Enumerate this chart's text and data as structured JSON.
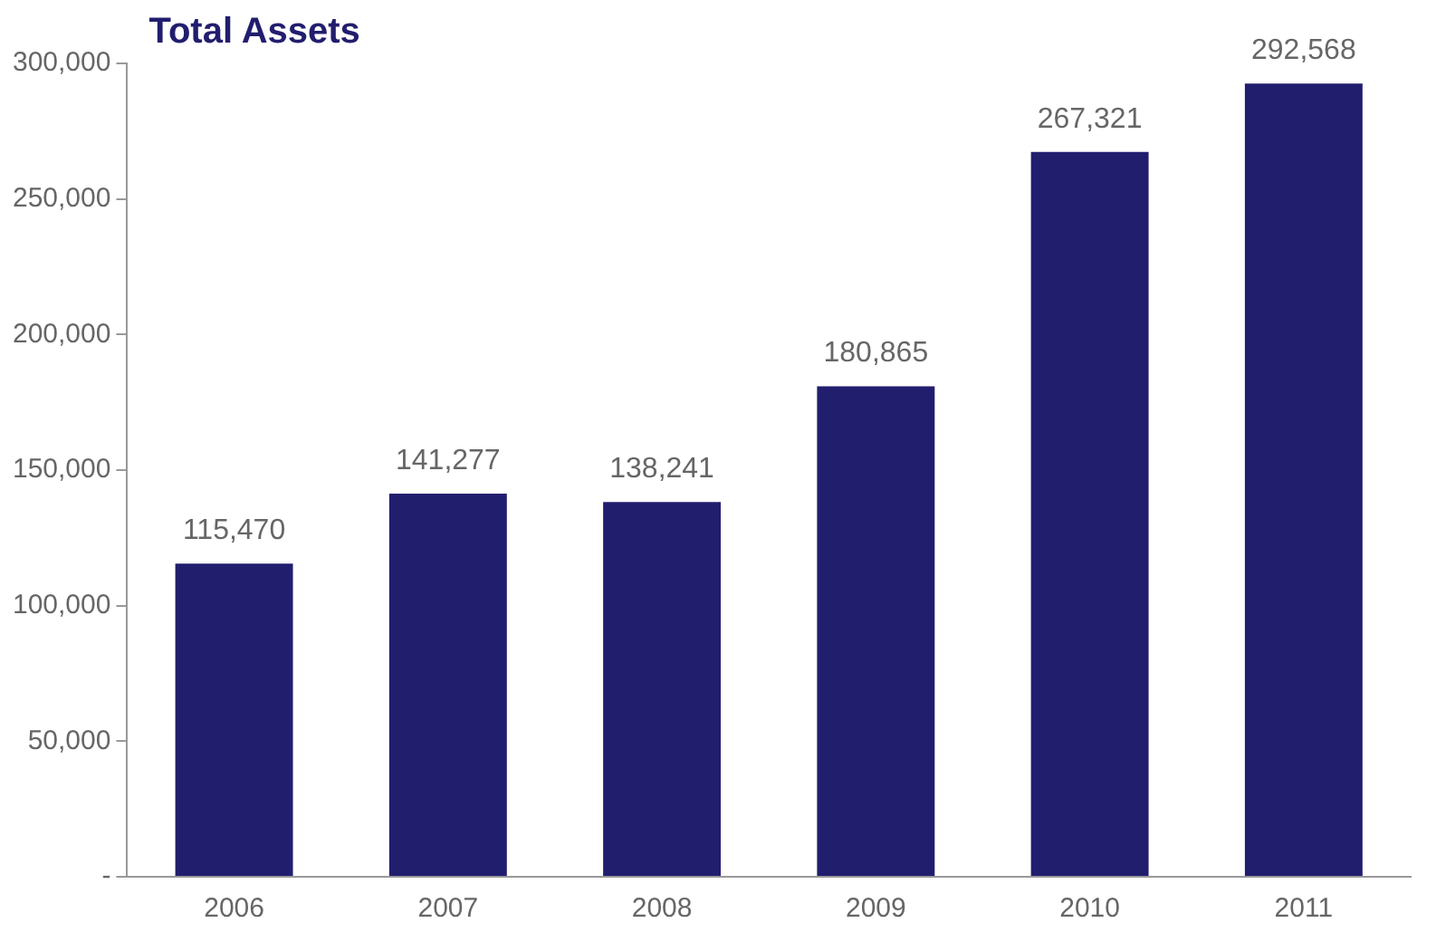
{
  "chart_data": {
    "type": "bar",
    "title": "Total Assets",
    "categories": [
      "2006",
      "2007",
      "2008",
      "2009",
      "2010",
      "2011"
    ],
    "values": [
      115470,
      141277,
      138241,
      180865,
      267321,
      292568
    ],
    "color": "#221e6e",
    "ylim": [
      0,
      300000
    ],
    "value_labels": [
      "115,470",
      "141,277",
      "138,241",
      "180,865",
      "267,321",
      "292,568"
    ],
    "yticks": [
      {
        "value": 0,
        "label": "-"
      },
      {
        "value": 50000,
        "label": "50,000"
      },
      {
        "value": 100000,
        "label": "100,000"
      },
      {
        "value": 150000,
        "label": "150,000"
      },
      {
        "value": 200000,
        "label": "200,000"
      },
      {
        "value": 250000,
        "label": "250,000"
      },
      {
        "value": 300000,
        "label": "300,000"
      }
    ],
    "grid": false,
    "legend": false
  }
}
